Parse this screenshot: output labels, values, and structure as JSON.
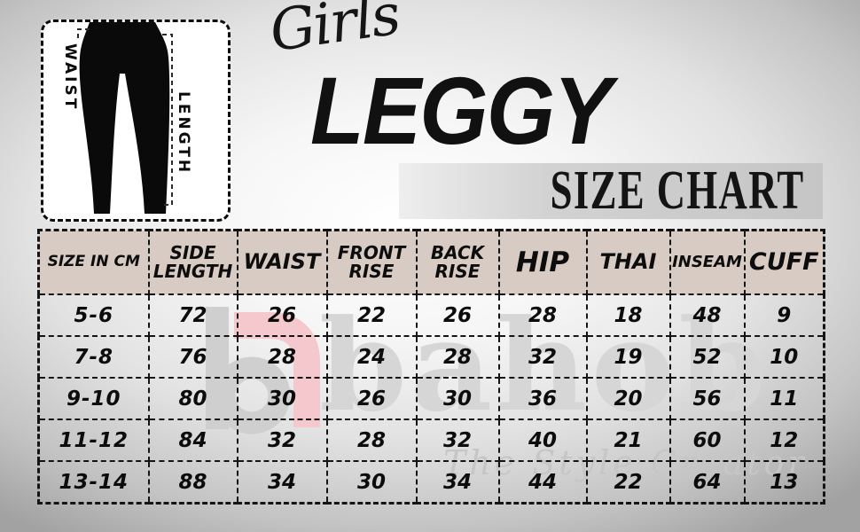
{
  "brand": {
    "name": "bahob",
    "tagline": "The Style Creator"
  },
  "header": {
    "script_title": "Girls",
    "main_title": "LEGGY",
    "banner_title": "SIZE CHART"
  },
  "diagram": {
    "waist_label": "WAIST",
    "length_label": "LENGTH"
  },
  "colors": {
    "header_row_bg": "#d7cbc3",
    "table_border": "#141414",
    "banner_bg": "#c9c9c9",
    "watermark_gray": "#d0d0d0",
    "watermark_pink": "#f5c8ce",
    "title_color": "#111111"
  },
  "chart_data": {
    "type": "table",
    "title": "Girls LEGGY SIZE CHART",
    "columns": [
      "SIZE IN CM",
      "SIDE LENGTH",
      "WAIST",
      "FRONT RISE",
      "BACK RISE",
      "HIP",
      "THAI",
      "INSEAM",
      "CUFF"
    ],
    "rows": [
      [
        "5-6",
        "72",
        "26",
        "22",
        "26",
        "28",
        "18",
        "48",
        "9"
      ],
      [
        "7-8",
        "76",
        "28",
        "24",
        "28",
        "32",
        "19",
        "52",
        "10"
      ],
      [
        "9-10",
        "80",
        "30",
        "26",
        "30",
        "36",
        "20",
        "56",
        "11"
      ],
      [
        "11-12",
        "84",
        "32",
        "28",
        "32",
        "40",
        "21",
        "60",
        "12"
      ],
      [
        "13-14",
        "88",
        "34",
        "30",
        "34",
        "44",
        "22",
        "64",
        "13"
      ]
    ]
  }
}
